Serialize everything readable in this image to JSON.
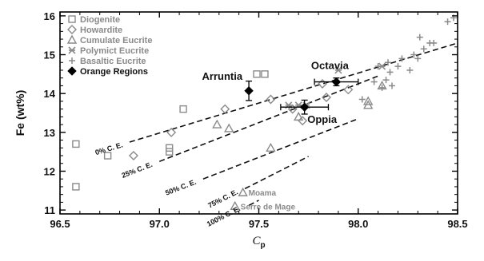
{
  "chart_data": {
    "type": "scatter",
    "xlabel": "C",
    "xlabel_sub": "p",
    "ylabel": "Fe (wt%)",
    "xlim": [
      96.5,
      98.5
    ],
    "ylim": [
      10.9,
      16.1
    ],
    "xticks": [
      96.5,
      97.0,
      97.5,
      98.0,
      98.5
    ],
    "xtick_labels": [
      "96.5",
      "97.0",
      "97.5",
      "98.0",
      "98.5"
    ],
    "yticks": [
      11,
      12,
      13,
      14,
      15,
      16
    ],
    "ytick_labels": [
      "11",
      "12",
      "13",
      "14",
      "15",
      "16"
    ],
    "legend_position": "top-left",
    "series": [
      {
        "name": "Diogenite",
        "marker": "square",
        "color": "#8a8a8a",
        "points": [
          [
            96.58,
            12.7
          ],
          [
            96.58,
            11.6
          ],
          [
            96.74,
            12.4
          ],
          [
            97.05,
            12.6
          ],
          [
            97.05,
            12.5
          ],
          [
            97.12,
            13.6
          ],
          [
            97.49,
            14.5
          ],
          [
            97.53,
            14.5
          ]
        ]
      },
      {
        "name": "Howardite",
        "marker": "diamond",
        "color": "#8a8a8a",
        "points": [
          [
            96.87,
            12.4
          ],
          [
            97.06,
            13.0
          ],
          [
            97.33,
            13.6
          ],
          [
            97.56,
            13.85
          ],
          [
            97.67,
            13.6
          ],
          [
            97.72,
            13.3
          ],
          [
            97.82,
            14.25
          ],
          [
            97.84,
            13.9
          ],
          [
            97.95,
            14.1
          ]
        ]
      },
      {
        "name": "Cumulate Eucrite",
        "marker": "triangle",
        "color": "#8a8a8a",
        "points": [
          [
            97.29,
            13.2
          ],
          [
            97.35,
            13.1
          ],
          [
            97.56,
            12.6
          ],
          [
            97.7,
            13.4
          ],
          [
            98.05,
            13.8
          ],
          [
            98.05,
            13.7
          ],
          [
            98.12,
            14.2
          ]
        ]
      },
      {
        "name": "Polymict Eucrite",
        "marker": "asterisk",
        "color": "#8a8a8a",
        "points": [
          [
            97.65,
            13.7
          ],
          [
            97.7,
            13.7
          ],
          [
            97.74,
            13.7
          ],
          [
            97.9,
            14.6
          ],
          [
            98.12,
            14.7
          ]
        ]
      },
      {
        "name": "Basaltic Eucrite",
        "marker": "plus",
        "color": "#8a8a8a",
        "points": [
          [
            98.02,
            13.85
          ],
          [
            98.08,
            14.3
          ],
          [
            98.1,
            14.7
          ],
          [
            98.12,
            14.15
          ],
          [
            98.14,
            14.35
          ],
          [
            98.15,
            14.8
          ],
          [
            98.16,
            14.55
          ],
          [
            98.17,
            14.2
          ],
          [
            98.2,
            14.7
          ],
          [
            98.22,
            14.9
          ],
          [
            98.26,
            14.6
          ],
          [
            98.28,
            15.0
          ],
          [
            98.3,
            14.9
          ],
          [
            98.31,
            15.45
          ],
          [
            98.33,
            15.15
          ],
          [
            98.36,
            15.3
          ],
          [
            98.38,
            15.3
          ],
          [
            98.45,
            15.85
          ],
          [
            98.48,
            15.95
          ]
        ]
      },
      {
        "name": "Orange Regions",
        "marker": "filled-diamond",
        "color": "#000000",
        "points": [
          {
            "label": "Arruntia",
            "x": 97.45,
            "y": 14.07,
            "xerr": 0.0,
            "yerr": 0.25
          },
          {
            "label": "Octavia",
            "x": 97.89,
            "y": 14.3,
            "xerr": 0.11,
            "yerr": 0.1
          },
          {
            "label": "Oppia",
            "x": 97.73,
            "y": 13.65,
            "xerr": 0.12,
            "yerr": 0.18
          }
        ]
      }
    ],
    "lines": [
      {
        "label": "0% C. E.",
        "x": [
          96.85,
          98.5
        ],
        "y": [
          12.75,
          15.3
        ]
      },
      {
        "label": "25% C. E.",
        "x": [
          97.0,
          98.1
        ],
        "y": [
          12.25,
          14.45
        ]
      },
      {
        "label": "50% C. E.",
        "x": [
          97.22,
          98.0
        ],
        "y": [
          11.8,
          13.35
        ]
      },
      {
        "label": "75% C. E.",
        "x": [
          97.43,
          97.75
        ],
        "y": [
          11.55,
          12.38
        ]
      },
      {
        "label": "100% C. E.",
        "x": [
          97.45,
          97.5
        ],
        "y": [
          11.12,
          11.25
        ]
      }
    ],
    "notes": [
      {
        "label": "Moama",
        "x": 97.42,
        "y": 11.45
      },
      {
        "label": "Serre de Mage",
        "x": 97.38,
        "y": 11.1
      }
    ]
  }
}
